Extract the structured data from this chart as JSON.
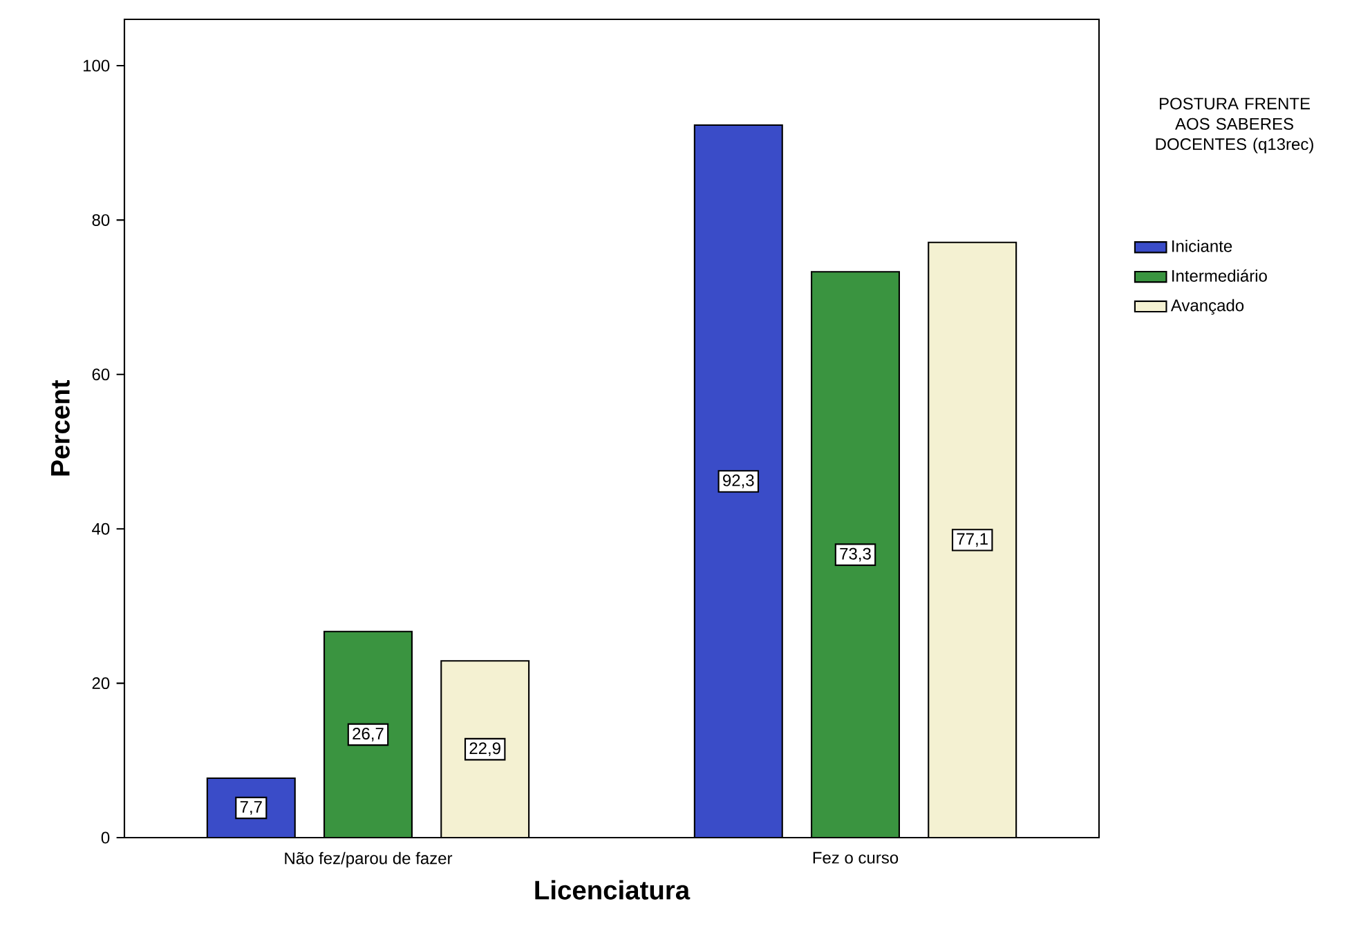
{
  "chart_data": {
    "type": "bar",
    "xlabel": "Licenciatura",
    "ylabel": "Percent",
    "legend_title": "POSTURA FRENTE AOS SABERES DOCENTES (q13rec)",
    "categories": [
      "Não fez/parou de fazer",
      "Fez o curso"
    ],
    "series": [
      {
        "name": "Iniciante",
        "color": "#3a4cc8",
        "values": [
          7.7,
          92.3
        ],
        "value_labels": [
          "7,7",
          "92,3"
        ]
      },
      {
        "name": "Intermediário",
        "color": "#3a9440",
        "values": [
          26.7,
          73.3
        ],
        "value_labels": [
          "26,7",
          "73,3"
        ]
      },
      {
        "name": "Avançado",
        "color": "#f4f1d2",
        "values": [
          22.9,
          77.1
        ],
        "value_labels": [
          "22,9",
          "77,1"
        ]
      }
    ],
    "ylim": [
      0,
      106
    ],
    "yticks": [
      0,
      20,
      40,
      60,
      80,
      100
    ],
    "grid": false,
    "legend": "right"
  }
}
